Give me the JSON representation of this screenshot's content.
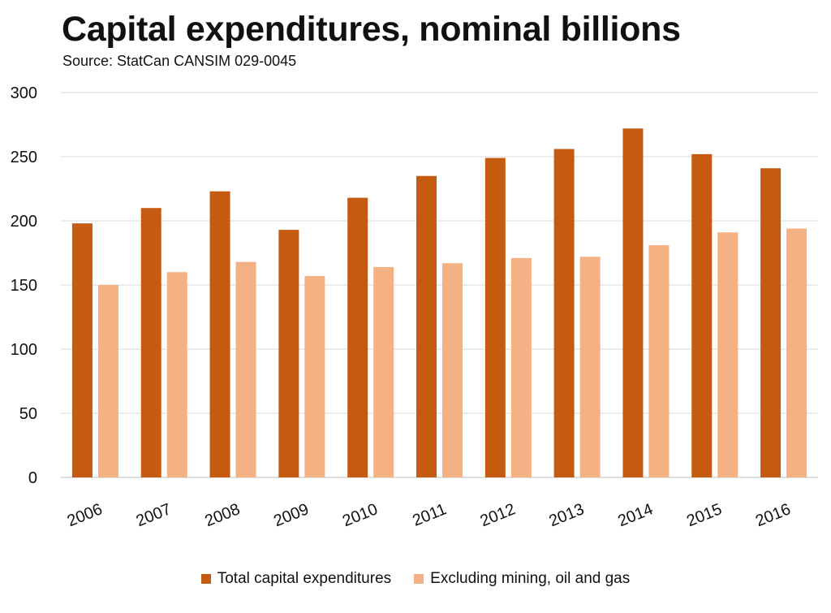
{
  "chart_data": {
    "type": "bar",
    "title": "Capital expenditures, nominal billions",
    "subtitle": "Source: StatCan CANSIM 029-0045",
    "categories": [
      "2006",
      "2007",
      "2008",
      "2009",
      "2010",
      "2011",
      "2012",
      "2013",
      "2014",
      "2015",
      "2016"
    ],
    "series": [
      {
        "name": "Total capital expenditures",
        "color": "#c55a11",
        "values": [
          198,
          210,
          223,
          193,
          218,
          235,
          249,
          256,
          272,
          252,
          241
        ]
      },
      {
        "name": "Excluding mining, oil and gas",
        "color": "#f4b183",
        "values": [
          150,
          160,
          168,
          157,
          164,
          167,
          171,
          172,
          181,
          191,
          194
        ]
      }
    ],
    "ylim": [
      0,
      300
    ],
    "yticks": [
      0,
      50,
      100,
      150,
      200,
      250,
      300
    ],
    "grid": true,
    "legend_position": "bottom"
  }
}
